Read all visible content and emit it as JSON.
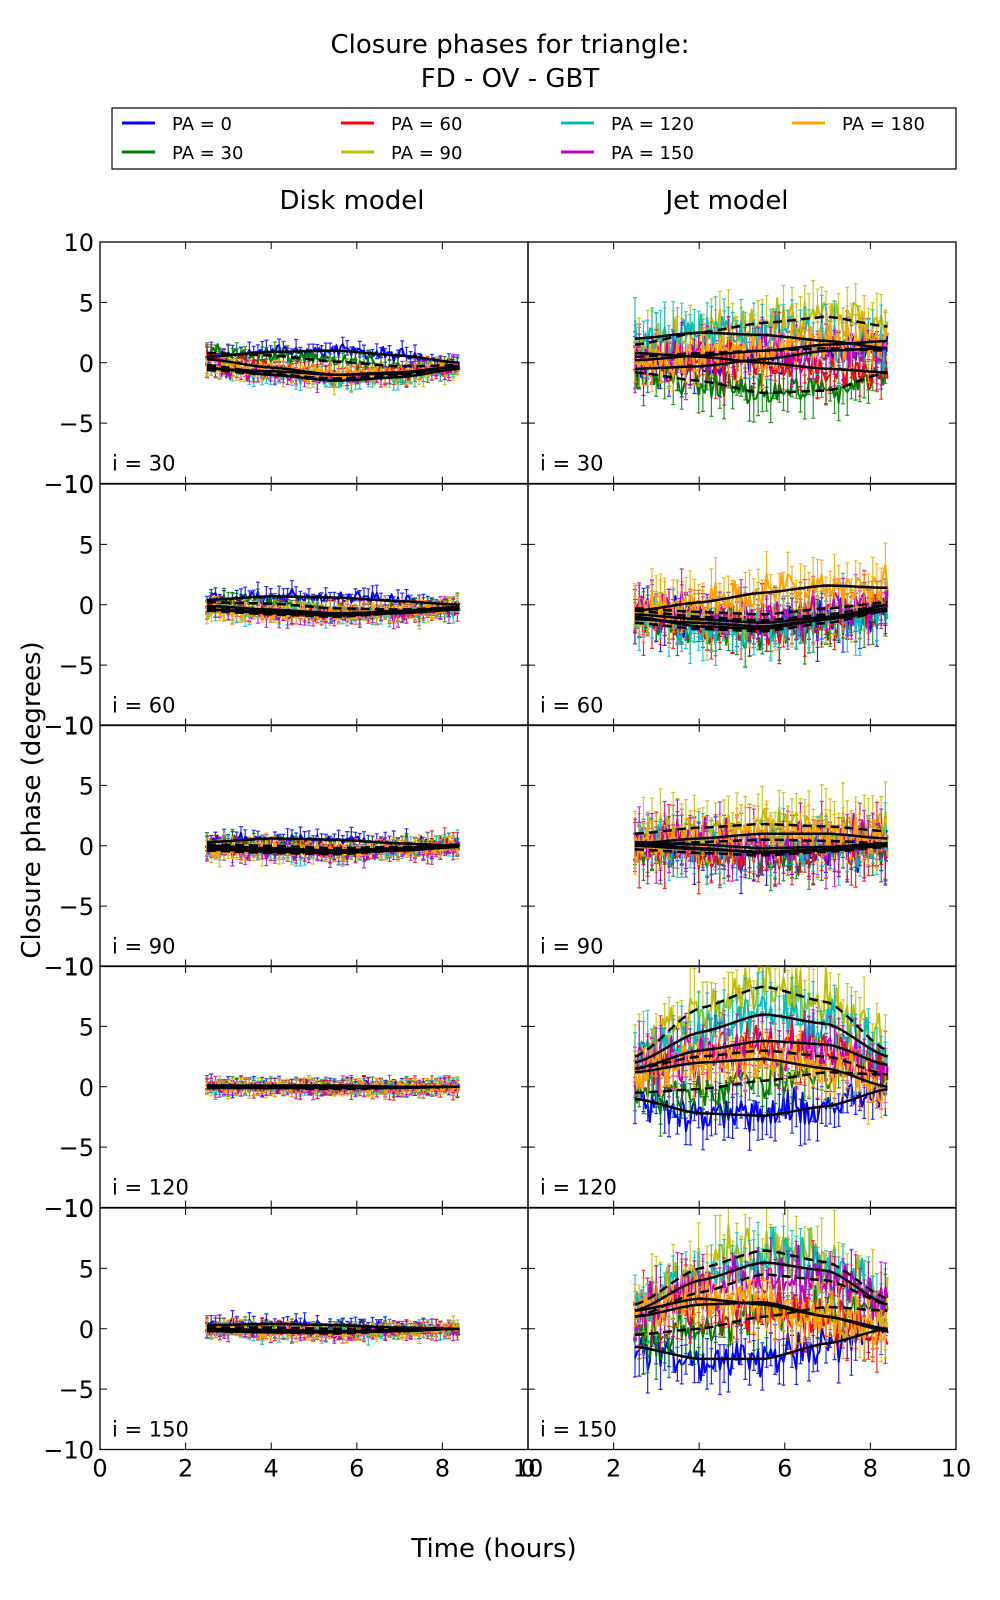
{
  "figure": {
    "title_line1": "Closure phases for triangle:",
    "title_line2": "FD - OV - GBT"
  },
  "legend": {
    "placement": "top",
    "entries": [
      {
        "label": "PA = 0",
        "color": "#0000ff"
      },
      {
        "label": "PA = 30",
        "color": "#008000"
      },
      {
        "label": "PA = 60",
        "color": "#ff0000"
      },
      {
        "label": "PA = 90",
        "color": "#bfbf00"
      },
      {
        "label": "PA = 120",
        "color": "#00bfbf"
      },
      {
        "label": "PA = 150",
        "color": "#bf00bf"
      },
      {
        "label": "PA = 180",
        "color": "#ffa500"
      }
    ]
  },
  "columns": [
    "Disk model",
    "Jet model"
  ],
  "rows": [
    "i = 30",
    "i = 60",
    "i = 90",
    "i = 120",
    "i = 150"
  ],
  "xlabel": "Time (hours)",
  "ylabel": "Closure phase (degrees)",
  "xlim": [
    0,
    10
  ],
  "ylim": [
    -10,
    10
  ],
  "xticks": [
    0,
    2,
    4,
    6,
    8,
    10
  ],
  "yticks": [
    -10,
    -5,
    0,
    5,
    10
  ],
  "chart_data": {
    "type": "line",
    "title": "Closure phases for triangle: FD - OV - GBT",
    "xlabel": "Time (hours)",
    "ylabel": "Closure phase (degrees)",
    "xlim": [
      0,
      10
    ],
    "ylim": [
      -10,
      10
    ],
    "legend_placement": "top",
    "time_range": [
      2.5,
      8.4
    ],
    "series_names": [
      "PA = 0",
      "PA = 30",
      "PA = 60",
      "PA = 90",
      "PA = 120",
      "PA = 150",
      "PA = 180"
    ],
    "panels": [
      {
        "column": "Disk model",
        "row": "i = 30",
        "model_x": [
          2.5,
          4,
          5.5,
          7,
          8.4
        ],
        "series": [
          {
            "name": "PA = 0",
            "values": [
              0.5,
              0.9,
              1.0,
              0.6,
              0.0
            ],
            "noise": 0.5
          },
          {
            "name": "PA = 30",
            "values": [
              0.8,
              0.6,
              0.1,
              -0.3,
              -0.2
            ],
            "noise": 0.5
          },
          {
            "name": "PA = 60",
            "values": [
              0.3,
              -0.4,
              -1.0,
              -0.9,
              -0.3
            ],
            "noise": 0.5
          },
          {
            "name": "PA = 90",
            "values": [
              -0.2,
              -0.9,
              -1.4,
              -1.1,
              -0.4
            ],
            "noise": 0.5
          },
          {
            "name": "PA = 120",
            "values": [
              -0.4,
              -1.0,
              -1.5,
              -1.2,
              -0.5
            ],
            "noise": 0.5
          },
          {
            "name": "PA = 150",
            "values": [
              -0.6,
              -1.0,
              -1.3,
              -1.0,
              -0.4
            ],
            "noise": 0.5
          },
          {
            "name": "PA = 180",
            "values": [
              -0.5,
              -0.7,
              -1.0,
              -0.8,
              -0.3
            ],
            "noise": 0.5
          }
        ]
      },
      {
        "column": "Jet model",
        "row": "i = 30",
        "model_x": [
          2.5,
          4,
          5.5,
          7,
          8.4
        ],
        "series": [
          {
            "name": "PA = 0",
            "values": [
              -0.5,
              -0.3,
              0.3,
              1.0,
              1.2
            ],
            "noise": 1.3
          },
          {
            "name": "PA = 30",
            "values": [
              -0.8,
              -1.5,
              -2.5,
              -2.3,
              -0.8
            ],
            "noise": 1.3
          },
          {
            "name": "PA = 60",
            "values": [
              0.8,
              0.5,
              0.0,
              -0.5,
              -0.8
            ],
            "noise": 1.3
          },
          {
            "name": "PA = 90",
            "values": [
              1.5,
              2.5,
              3.3,
              3.8,
              3.0
            ],
            "noise": 1.6
          },
          {
            "name": "PA = 120",
            "values": [
              2.0,
              2.5,
              2.3,
              1.8,
              1.2
            ],
            "noise": 1.6
          },
          {
            "name": "PA = 150",
            "values": [
              0.5,
              0.8,
              1.0,
              1.2,
              1.0
            ],
            "noise": 1.3
          },
          {
            "name": "PA = 180",
            "values": [
              0.2,
              0.6,
              1.0,
              1.5,
              1.8
            ],
            "noise": 1.4
          }
        ]
      },
      {
        "column": "Disk model",
        "row": "i = 60",
        "model_x": [
          2.5,
          4,
          5.5,
          7,
          8.4
        ],
        "series": [
          {
            "name": "PA = 0",
            "values": [
              0.4,
              0.7,
              0.6,
              0.3,
              0.0
            ],
            "noise": 0.5
          },
          {
            "name": "PA = 30",
            "values": [
              0.2,
              0.1,
              -0.3,
              -0.4,
              -0.2
            ],
            "noise": 0.5
          },
          {
            "name": "PA = 60",
            "values": [
              -0.1,
              -0.4,
              -0.7,
              -0.6,
              -0.3
            ],
            "noise": 0.5
          },
          {
            "name": "PA = 90",
            "values": [
              -0.3,
              -0.6,
              -0.8,
              -0.6,
              -0.3
            ],
            "noise": 0.5
          },
          {
            "name": "PA = 120",
            "values": [
              -0.4,
              -0.7,
              -0.9,
              -0.7,
              -0.4
            ],
            "noise": 0.5
          },
          {
            "name": "PA = 150",
            "values": [
              -0.5,
              -0.8,
              -1.0,
              -0.7,
              -0.3
            ],
            "noise": 0.5
          },
          {
            "name": "PA = 180",
            "values": [
              -0.4,
              -0.6,
              -0.8,
              -0.5,
              -0.2
            ],
            "noise": 0.5
          }
        ]
      },
      {
        "column": "Jet model",
        "row": "i = 60",
        "model_x": [
          2.5,
          4,
          5.5,
          7,
          8.4
        ],
        "series": [
          {
            "name": "PA = 0",
            "values": [
              -0.8,
              -1.2,
              -1.5,
              -1.0,
              -0.3
            ],
            "noise": 1.3
          },
          {
            "name": "PA = 30",
            "values": [
              -1.5,
              -2.0,
              -2.2,
              -1.5,
              -0.5
            ],
            "noise": 1.3
          },
          {
            "name": "PA = 60",
            "values": [
              -1.0,
              -1.8,
              -2.0,
              -1.2,
              0.0
            ],
            "noise": 1.4
          },
          {
            "name": "PA = 90",
            "values": [
              -0.5,
              -1.0,
              -1.3,
              -0.8,
              0.0
            ],
            "noise": 1.3
          },
          {
            "name": "PA = 120",
            "values": [
              -1.2,
              -1.5,
              -1.8,
              -1.2,
              -0.5
            ],
            "noise": 1.4
          },
          {
            "name": "PA = 150",
            "values": [
              -0.3,
              -0.6,
              -0.8,
              -0.3,
              0.2
            ],
            "noise": 1.3
          },
          {
            "name": "PA = 180",
            "values": [
              -0.5,
              0.2,
              1.0,
              1.6,
              1.4
            ],
            "noise": 1.4
          }
        ]
      },
      {
        "column": "Disk model",
        "row": "i = 90",
        "model_x": [
          2.5,
          4,
          5.5,
          7,
          8.4
        ],
        "series": [
          {
            "name": "PA = 0",
            "values": [
              0.3,
              0.6,
              0.5,
              0.2,
              0.0
            ],
            "noise": 0.5
          },
          {
            "name": "PA = 30",
            "values": [
              0.1,
              0.0,
              -0.2,
              -0.1,
              0.0
            ],
            "noise": 0.5
          },
          {
            "name": "PA = 60",
            "values": [
              0.0,
              -0.2,
              -0.4,
              -0.2,
              0.1
            ],
            "noise": 0.5
          },
          {
            "name": "PA = 90",
            "values": [
              -0.2,
              -0.4,
              -0.5,
              -0.3,
              0.0
            ],
            "noise": 0.5
          },
          {
            "name": "PA = 120",
            "values": [
              -0.3,
              -0.5,
              -0.6,
              -0.4,
              -0.1
            ],
            "noise": 0.5
          },
          {
            "name": "PA = 150",
            "values": [
              -0.4,
              -0.6,
              -0.7,
              -0.4,
              -0.1
            ],
            "noise": 0.5
          },
          {
            "name": "PA = 180",
            "values": [
              -0.2,
              -0.3,
              -0.4,
              -0.2,
              0.0
            ],
            "noise": 0.5
          }
        ]
      },
      {
        "column": "Jet model",
        "row": "i = 90",
        "model_x": [
          2.5,
          4,
          5.5,
          7,
          8.4
        ],
        "series": [
          {
            "name": "PA = 0",
            "values": [
              0.0,
              -0.3,
              -0.5,
              -0.3,
              0.0
            ],
            "noise": 1.3
          },
          {
            "name": "PA = 30",
            "values": [
              -0.3,
              -0.6,
              -0.8,
              -0.5,
              -0.1
            ],
            "noise": 1.3
          },
          {
            "name": "PA = 60",
            "values": [
              0.2,
              -0.2,
              -0.6,
              -0.4,
              0.0
            ],
            "noise": 1.5
          },
          {
            "name": "PA = 90",
            "values": [
              1.0,
              1.5,
              1.8,
              1.6,
              1.2
            ],
            "noise": 1.7
          },
          {
            "name": "PA = 120",
            "values": [
              0.3,
              0.1,
              -0.2,
              -0.1,
              0.2
            ],
            "noise": 1.4
          },
          {
            "name": "PA = 150",
            "values": [
              0.0,
              0.3,
              0.5,
              0.4,
              0.2
            ],
            "noise": 1.5
          },
          {
            "name": "PA = 180",
            "values": [
              0.2,
              0.6,
              1.0,
              1.0,
              0.6
            ],
            "noise": 1.3
          }
        ]
      },
      {
        "column": "Disk model",
        "row": "i = 120",
        "model_x": [
          2.5,
          4,
          5.5,
          7,
          8.4
        ],
        "series": [
          {
            "name": "PA = 0",
            "values": [
              0.1,
              0.1,
              0.1,
              0.0,
              0.0
            ],
            "noise": 0.4
          },
          {
            "name": "PA = 30",
            "values": [
              0.1,
              0.0,
              0.0,
              0.0,
              0.0
            ],
            "noise": 0.4
          },
          {
            "name": "PA = 60",
            "values": [
              0.0,
              0.0,
              -0.1,
              0.0,
              0.0
            ],
            "noise": 0.4
          },
          {
            "name": "PA = 90",
            "values": [
              0.0,
              -0.1,
              -0.1,
              0.0,
              0.0
            ],
            "noise": 0.4
          },
          {
            "name": "PA = 120",
            "values": [
              -0.1,
              -0.1,
              -0.1,
              -0.1,
              0.0
            ],
            "noise": 0.4
          },
          {
            "name": "PA = 150",
            "values": [
              -0.1,
              -0.1,
              -0.2,
              -0.1,
              0.0
            ],
            "noise": 0.4
          },
          {
            "name": "PA = 180",
            "values": [
              0.0,
              0.0,
              0.0,
              0.0,
              0.0
            ],
            "noise": 0.4
          }
        ]
      },
      {
        "column": "Jet model",
        "row": "i = 120",
        "model_x": [
          2.5,
          4,
          5.5,
          7,
          8.4
        ],
        "series": [
          {
            "name": "PA = 0",
            "values": [
              -1.0,
              -2.2,
              -2.4,
              -1.6,
              -0.2
            ],
            "noise": 1.3
          },
          {
            "name": "PA = 30",
            "values": [
              -0.5,
              -0.2,
              0.5,
              1.2,
              1.0
            ],
            "noise": 1.4
          },
          {
            "name": "PA = 60",
            "values": [
              1.5,
              3.0,
              3.8,
              3.5,
              1.8
            ],
            "noise": 1.6
          },
          {
            "name": "PA = 90",
            "values": [
              2.5,
              6.5,
              8.3,
              7.0,
              3.0
            ],
            "noise": 2.0
          },
          {
            "name": "PA = 120",
            "values": [
              2.0,
              4.5,
              6.0,
              5.2,
              2.5
            ],
            "noise": 1.8
          },
          {
            "name": "PA = 150",
            "values": [
              1.5,
              2.5,
              3.0,
              2.5,
              1.0
            ],
            "noise": 1.6
          },
          {
            "name": "PA = 180",
            "values": [
              1.2,
              2.0,
              2.3,
              1.5,
              0.0
            ],
            "noise": 1.5
          }
        ]
      },
      {
        "column": "Disk model",
        "row": "i = 150",
        "model_x": [
          2.5,
          4,
          5.5,
          7,
          8.4
        ],
        "series": [
          {
            "name": "PA = 0",
            "values": [
              0.3,
              0.4,
              0.3,
              0.1,
              0.0
            ],
            "noise": 0.4
          },
          {
            "name": "PA = 30",
            "values": [
              0.1,
              0.1,
              0.0,
              0.0,
              0.0
            ],
            "noise": 0.4
          },
          {
            "name": "PA = 60",
            "values": [
              0.0,
              -0.1,
              -0.2,
              -0.1,
              0.0
            ],
            "noise": 0.4
          },
          {
            "name": "PA = 90",
            "values": [
              -0.1,
              -0.2,
              -0.3,
              -0.2,
              0.0
            ],
            "noise": 0.4
          },
          {
            "name": "PA = 120",
            "values": [
              -0.2,
              -0.3,
              -0.3,
              -0.2,
              0.0
            ],
            "noise": 0.4
          },
          {
            "name": "PA = 150",
            "values": [
              -0.2,
              -0.3,
              -0.4,
              -0.2,
              0.0
            ],
            "noise": 0.4
          },
          {
            "name": "PA = 180",
            "values": [
              -0.1,
              -0.2,
              -0.3,
              -0.1,
              0.0
            ],
            "noise": 0.4
          }
        ]
      },
      {
        "column": "Jet model",
        "row": "i = 150",
        "model_x": [
          2.5,
          4,
          5.5,
          7,
          8.4
        ],
        "series": [
          {
            "name": "PA = 0",
            "values": [
              -1.5,
              -2.5,
              -2.5,
              -1.2,
              0.0
            ],
            "noise": 1.4
          },
          {
            "name": "PA = 30",
            "values": [
              -0.5,
              0.0,
              1.0,
              1.8,
              1.5
            ],
            "noise": 1.5
          },
          {
            "name": "PA = 60",
            "values": [
              1.0,
              2.0,
              2.2,
              1.0,
              -0.2
            ],
            "noise": 1.6
          },
          {
            "name": "PA = 90",
            "values": [
              2.0,
              5.0,
              6.5,
              5.5,
              2.5
            ],
            "noise": 2.0
          },
          {
            "name": "PA = 120",
            "values": [
              1.5,
              4.0,
              5.5,
              4.8,
              2.0
            ],
            "noise": 1.8
          },
          {
            "name": "PA = 150",
            "values": [
              1.0,
              3.0,
              4.5,
              4.0,
              2.0
            ],
            "noise": 1.7
          },
          {
            "name": "PA = 180",
            "values": [
              1.5,
              2.5,
              2.0,
              1.0,
              0.0
            ],
            "noise": 1.5
          }
        ]
      }
    ]
  }
}
